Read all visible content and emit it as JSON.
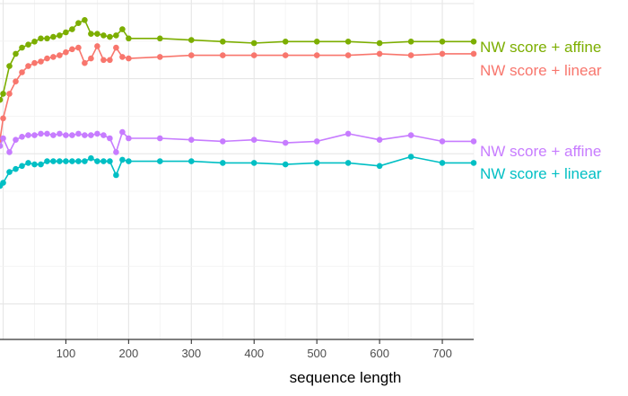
{
  "chart_data": {
    "type": "line",
    "title": "",
    "xlabel": "sequence length",
    "ylabel": "",
    "xlim": [
      -5,
      750
    ],
    "ylim": [
      0,
      10
    ],
    "x_ticks": [
      100,
      200,
      300,
      400,
      500,
      600,
      700
    ],
    "x_tick_labels": [
      "100",
      "200",
      "300",
      "400",
      "500",
      "600",
      "700"
    ],
    "grid": true,
    "legend": "direct labels at right end of each line",
    "series": [
      {
        "name": "NW score + affine",
        "color": "#7CAE00",
        "x": [
          -5,
          0,
          10,
          20,
          30,
          40,
          50,
          60,
          70,
          80,
          90,
          100,
          110,
          120,
          130,
          140,
          150,
          160,
          170,
          180,
          190,
          200,
          250,
          300,
          350,
          400,
          450,
          500,
          550,
          600,
          650,
          700,
          750
        ],
        "y": [
          7.8,
          8.0,
          8.9,
          9.3,
          9.5,
          9.6,
          9.7,
          9.8,
          9.8,
          9.85,
          9.9,
          10.0,
          10.1,
          10.3,
          10.4,
          9.95,
          9.95,
          9.9,
          9.85,
          9.9,
          10.1,
          9.8,
          9.8,
          9.75,
          9.7,
          9.65,
          9.7,
          9.7,
          9.7,
          9.65,
          9.7,
          9.7,
          9.7
        ]
      },
      {
        "name": "NW score + linear",
        "color": "#F8766D",
        "x": [
          -5,
          0,
          10,
          20,
          30,
          40,
          50,
          60,
          70,
          80,
          90,
          100,
          110,
          120,
          130,
          140,
          150,
          160,
          170,
          180,
          190,
          200,
          250,
          300,
          350,
          400,
          450,
          500,
          550,
          600,
          650,
          700,
          750
        ],
        "y": [
          6.5,
          7.2,
          8.0,
          8.4,
          8.7,
          8.9,
          9.0,
          9.05,
          9.15,
          9.2,
          9.25,
          9.35,
          9.45,
          9.5,
          9.0,
          9.15,
          9.55,
          9.1,
          9.1,
          9.5,
          9.2,
          9.15,
          9.2,
          9.25,
          9.25,
          9.25,
          9.25,
          9.25,
          9.25,
          9.3,
          9.25,
          9.3,
          9.3
        ]
      },
      {
        "name": "NW score + affine",
        "color": "#C77CFF",
        "x": [
          -5,
          0,
          10,
          20,
          30,
          40,
          50,
          60,
          70,
          80,
          90,
          100,
          110,
          120,
          130,
          140,
          150,
          160,
          170,
          180,
          190,
          200,
          250,
          300,
          350,
          400,
          450,
          500,
          550,
          600,
          650,
          700,
          750
        ],
        "y": [
          6.3,
          6.55,
          6.1,
          6.5,
          6.6,
          6.65,
          6.65,
          6.7,
          6.7,
          6.65,
          6.7,
          6.65,
          6.65,
          6.7,
          6.65,
          6.65,
          6.7,
          6.65,
          6.55,
          6.1,
          6.75,
          6.55,
          6.55,
          6.5,
          6.45,
          6.5,
          6.4,
          6.45,
          6.7,
          6.5,
          6.65,
          6.45,
          6.45
        ]
      },
      {
        "name": "NW score + linear",
        "color": "#00BFC4",
        "x": [
          -5,
          0,
          10,
          20,
          30,
          40,
          50,
          60,
          70,
          80,
          90,
          100,
          110,
          120,
          130,
          140,
          150,
          160,
          170,
          180,
          190,
          200,
          250,
          300,
          350,
          400,
          450,
          500,
          550,
          600,
          650,
          700,
          750
        ],
        "y": [
          5.0,
          5.1,
          5.45,
          5.55,
          5.65,
          5.75,
          5.7,
          5.7,
          5.8,
          5.8,
          5.8,
          5.8,
          5.8,
          5.8,
          5.8,
          5.9,
          5.8,
          5.8,
          5.8,
          5.35,
          5.85,
          5.8,
          5.8,
          5.8,
          5.75,
          5.75,
          5.7,
          5.75,
          5.75,
          5.65,
          5.95,
          5.75,
          5.75
        ]
      }
    ]
  }
}
